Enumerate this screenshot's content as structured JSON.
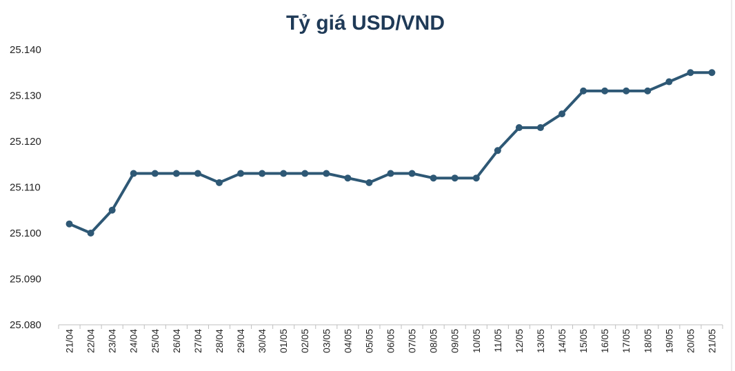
{
  "chart_data": {
    "type": "line",
    "title": "Tỷ giá USD/VND",
    "xlabel": "",
    "ylabel": "",
    "categories": [
      "21/04",
      "22/04",
      "23/04",
      "24/04",
      "25/04",
      "26/04",
      "27/04",
      "28/04",
      "29/04",
      "30/04",
      "01/05",
      "02/05",
      "03/05",
      "04/05",
      "05/05",
      "06/05",
      "07/05",
      "08/05",
      "09/05",
      "10/05",
      "11/05",
      "12/05",
      "13/05",
      "14/05",
      "15/05",
      "16/05",
      "17/05",
      "18/05",
      "19/05",
      "20/05",
      "21/05"
    ],
    "values": [
      25102,
      25100,
      25105,
      25113,
      25113,
      25113,
      25113,
      25111,
      25113,
      25113,
      25113,
      25113,
      25113,
      25112,
      25111,
      25113,
      25113,
      25112,
      25112,
      25112,
      25118,
      25123,
      25123,
      25126,
      25131,
      25131,
      25131,
      25131,
      25133,
      25135,
      25135
    ],
    "ylim": [
      25080,
      25140
    ],
    "yticks": [
      "25.080",
      "25.090",
      "25.100",
      "25.110",
      "25.120",
      "25.130",
      "25.140"
    ],
    "grid": false,
    "legend": "none",
    "line_color": "#2e5875"
  }
}
